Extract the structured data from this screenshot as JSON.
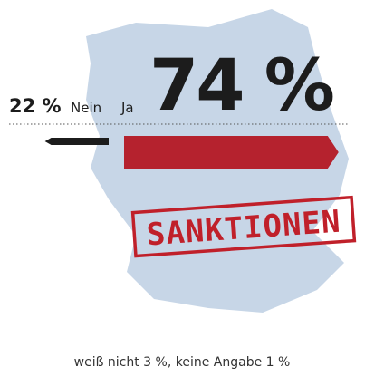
{
  "chart_data": {
    "type": "bar",
    "categories": [
      "Nein",
      "Ja"
    ],
    "values": [
      22,
      74
    ],
    "value_labels": [
      "22 %",
      "74 %"
    ],
    "colors": [
      "#1c1c1c",
      "#b5222e"
    ],
    "stamp": "SANKTIONEN",
    "note": "weiß nicht 3 %, keine Angabe 1 %"
  }
}
